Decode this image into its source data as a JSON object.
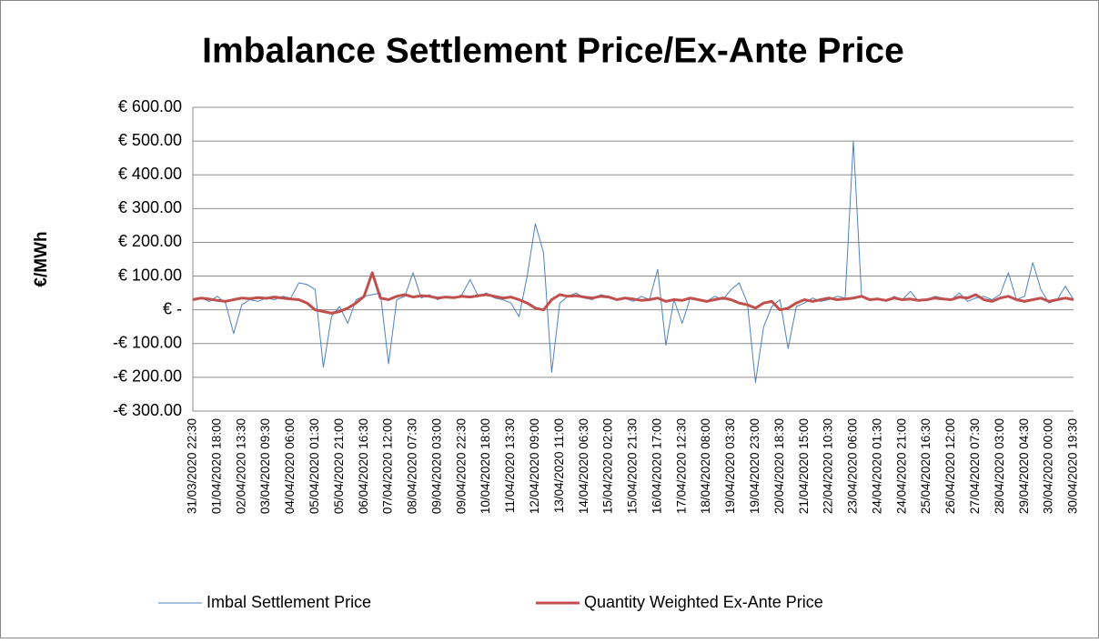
{
  "chart_data": {
    "type": "line",
    "title": "Imbalance Settlement Price/Ex-Ante Price",
    "y_label": "€/MWh",
    "categories": [
      "31/03/2020 22:30",
      null,
      null,
      "01/04/2020 18:00",
      null,
      null,
      "02/04/2020 13:30",
      null,
      null,
      "03/04/2020 09:30",
      null,
      null,
      "04/04/2020 06:00",
      null,
      null,
      "05/04/2020 01:30",
      null,
      null,
      "05/04/2020 21:00",
      null,
      null,
      "06/04/2020 16:30",
      null,
      null,
      "07/04/2020 12:00",
      null,
      null,
      "08/04/2020 07:30",
      null,
      null,
      "09/04/2020 03:00",
      null,
      null,
      "09/04/2020 22:30",
      null,
      null,
      "10/04/2020 18:00",
      null,
      null,
      "11/04/2020 13:30",
      null,
      null,
      "12/04/2020 09:00",
      null,
      null,
      "13/04/2020 11:00",
      null,
      null,
      "14/04/2020 06:30",
      null,
      null,
      "15/04/2020 02:00",
      null,
      null,
      "15/04/2020 21:30",
      null,
      null,
      "16/04/2020 17:00",
      null,
      null,
      "17/04/2020 12:30",
      null,
      null,
      "18/04/2020 08:00",
      null,
      null,
      "19/04/2020 03:30",
      null,
      null,
      "19/04/2020 23:00",
      null,
      null,
      "20/04/2020 18:30",
      null,
      null,
      "21/04/2020 15:00",
      null,
      null,
      "22/04/2020 10:30",
      null,
      null,
      "23/04/2020 06:00",
      null,
      null,
      "24/04/2020 01:30",
      null,
      null,
      "24/04/2020 21:00",
      null,
      null,
      "25/04/2020 16:30",
      null,
      null,
      "26/04/2020 12:00",
      null,
      null,
      "27/04/2020 07:30",
      null,
      null,
      "28/04/2020 03:00",
      null,
      null,
      "29/04/2020 04:30",
      null,
      null,
      "30/04/2020 00:00",
      null,
      null,
      "30/04/2020 19:30"
    ],
    "series": [
      {
        "name": "Imbal Settlement Price",
        "color": "#4f81bd",
        "width": 1,
        "values": [
          30,
          35,
          25,
          40,
          20,
          -70,
          15,
          30,
          25,
          35,
          30,
          40,
          35,
          80,
          75,
          60,
          -170,
          -20,
          10,
          -40,
          30,
          40,
          45,
          50,
          -160,
          30,
          40,
          110,
          35,
          45,
          30,
          40,
          35,
          45,
          90,
          40,
          50,
          35,
          30,
          20,
          -20,
          100,
          255,
          170,
          -185,
          20,
          40,
          50,
          35,
          30,
          45,
          40,
          30,
          35,
          25,
          40,
          30,
          120,
          -105,
          30,
          -40,
          35,
          30,
          25,
          40,
          30,
          60,
          80,
          20,
          -215,
          -50,
          10,
          30,
          -115,
          10,
          20,
          35,
          25,
          30,
          40,
          35,
          500,
          40,
          30,
          35,
          25,
          40,
          30,
          55,
          25,
          30,
          40,
          35,
          30,
          50,
          25,
          35,
          40,
          30,
          45,
          110,
          30,
          40,
          140,
          60,
          20,
          30,
          70,
          30
        ]
      },
      {
        "name": "Quantity Weighted Ex-Ante Price",
        "color": "#c0504d",
        "width": 3,
        "values": [
          30,
          35,
          32,
          28,
          25,
          30,
          35,
          33,
          36,
          34,
          38,
          35,
          32,
          30,
          20,
          0,
          -5,
          -10,
          -5,
          5,
          20,
          40,
          110,
          35,
          30,
          40,
          45,
          38,
          42,
          40,
          35,
          38,
          36,
          40,
          38,
          42,
          45,
          40,
          35,
          38,
          30,
          20,
          5,
          0,
          30,
          45,
          40,
          42,
          38,
          35,
          40,
          38,
          30,
          35,
          32,
          28,
          30,
          35,
          25,
          30,
          28,
          35,
          30,
          25,
          30,
          35,
          30,
          20,
          15,
          5,
          20,
          25,
          0,
          5,
          20,
          30,
          25,
          30,
          35,
          30,
          32,
          35,
          40,
          30,
          32,
          28,
          35,
          30,
          32,
          28,
          30,
          35,
          32,
          30,
          38,
          35,
          45,
          30,
          25,
          35,
          40,
          30,
          25,
          30,
          35,
          25,
          30,
          35,
          30
        ]
      }
    ],
    "ylim": [
      -300,
      600
    ],
    "yticks": [
      {
        "value": -300,
        "label": "-€ 300.00"
      },
      {
        "value": -200,
        "label": "-€ 200.00"
      },
      {
        "value": -100,
        "label": "-€ 100.00"
      },
      {
        "value": 0,
        "label": "€ -"
      },
      {
        "value": 100,
        "label": "€ 100.00"
      },
      {
        "value": 200,
        "label": "€ 200.00"
      },
      {
        "value": 300,
        "label": "€ 300.00"
      },
      {
        "value": 400,
        "label": "€ 400.00"
      },
      {
        "value": 500,
        "label": "€ 500.00"
      },
      {
        "value": 600,
        "label": "€ 600.00"
      }
    ],
    "grid": true,
    "legend": "bottom"
  }
}
